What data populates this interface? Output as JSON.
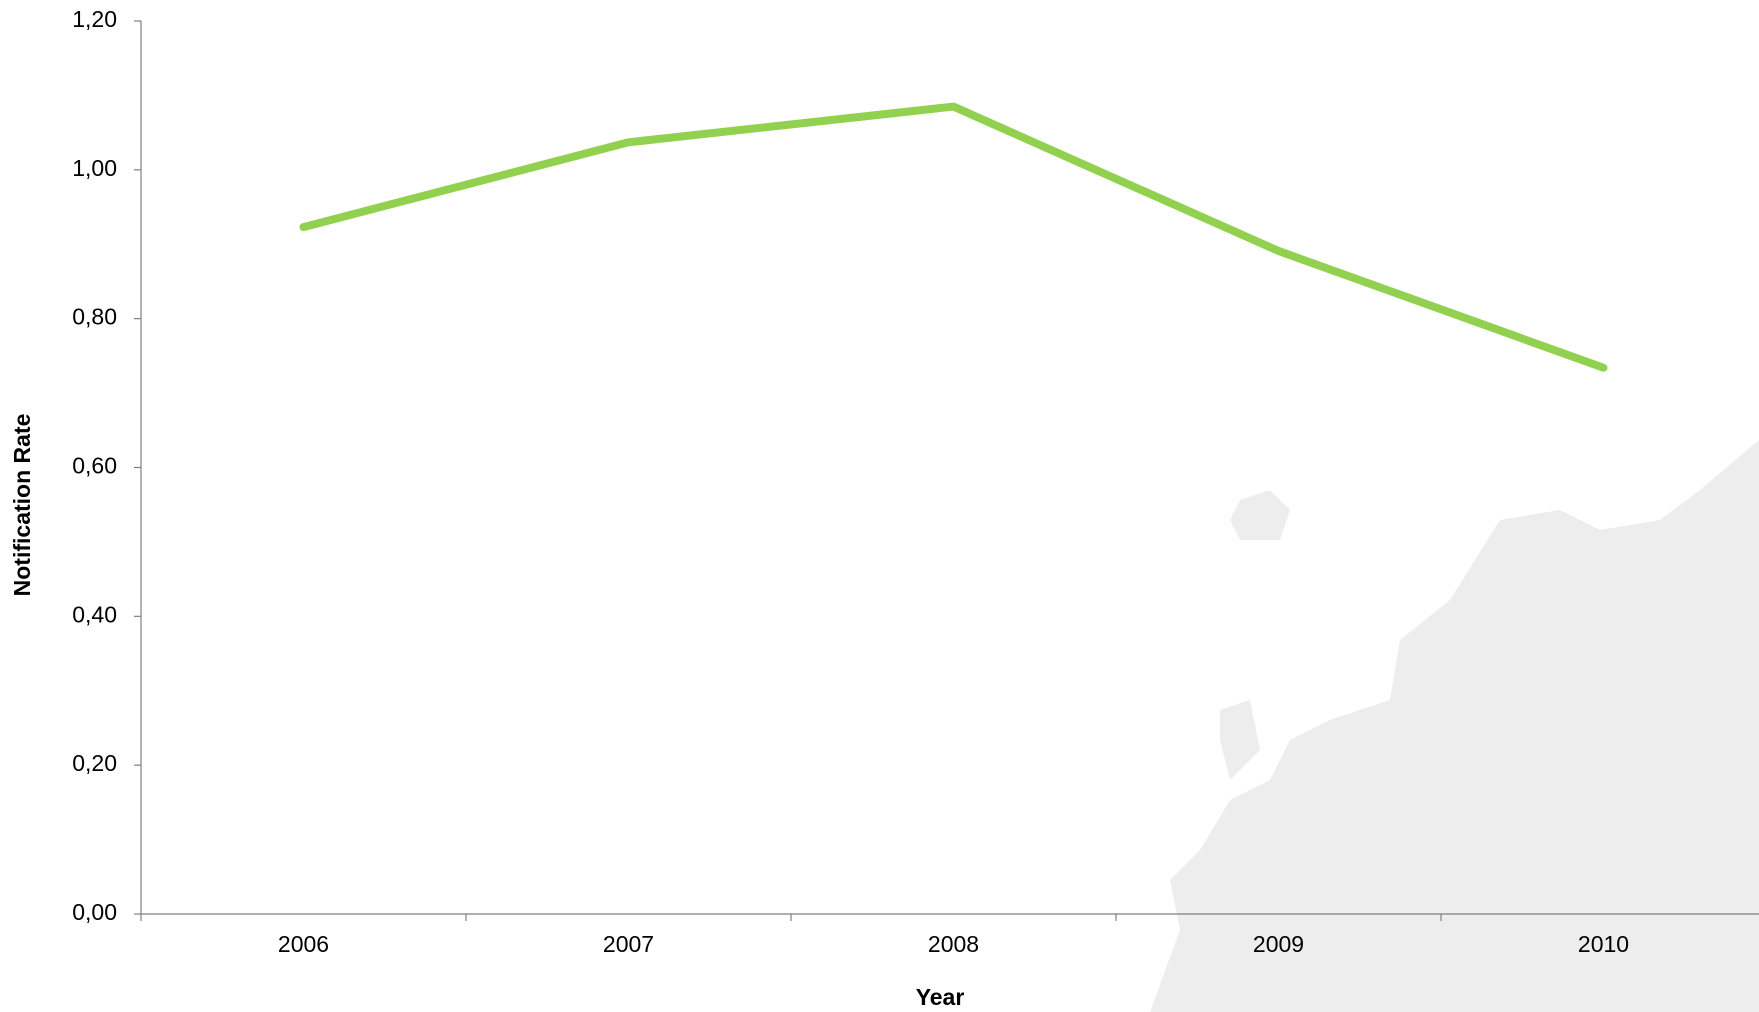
{
  "chart_data": {
    "type": "line",
    "x_label": "Year",
    "y_label": "Notification Rate",
    "categories": [
      "2006",
      "2007",
      "2008",
      "2009",
      "2010"
    ],
    "series": [
      {
        "name": "Notification Rate",
        "color": "#92d050",
        "values": [
          0.923,
          1.037,
          1.085,
          0.891,
          0.734
        ]
      }
    ],
    "ylim": [
      0,
      1.2
    ],
    "yticks": [
      {
        "value": 0,
        "label": "0,00"
      },
      {
        "value": 0.2,
        "label": "0,20"
      },
      {
        "value": 0.4,
        "label": "0,40"
      },
      {
        "value": 0.6,
        "label": "0,60"
      },
      {
        "value": 0.8,
        "label": "0,80"
      },
      {
        "value": 1.0,
        "label": "1,00"
      },
      {
        "value": 1.2,
        "label": "1,20"
      }
    ]
  }
}
